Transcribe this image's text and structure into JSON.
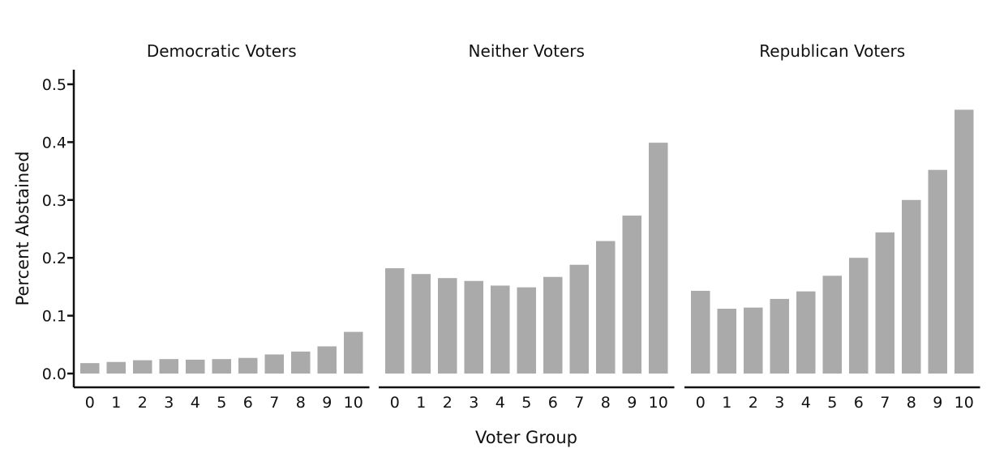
{
  "chart_data": {
    "type": "bar",
    "xlabel": "Voter Group",
    "ylabel": "Percent Abstained",
    "ylim": [
      0,
      0.5
    ],
    "yticks": [
      "0.0",
      "0.1",
      "0.2",
      "0.3",
      "0.4",
      "0.5"
    ],
    "categories": [
      "0",
      "1",
      "2",
      "3",
      "4",
      "5",
      "6",
      "7",
      "8",
      "9",
      "10"
    ],
    "bar_color": "#aaaaaa",
    "grid": false,
    "panels": [
      {
        "title": "Democratic Voters",
        "values": [
          0.018,
          0.02,
          0.023,
          0.025,
          0.024,
          0.025,
          0.027,
          0.033,
          0.038,
          0.047,
          0.072
        ]
      },
      {
        "title": "Neither Voters",
        "values": [
          0.182,
          0.172,
          0.165,
          0.16,
          0.152,
          0.149,
          0.167,
          0.188,
          0.229,
          0.273,
          0.399
        ]
      },
      {
        "title": "Republican Voters",
        "values": [
          0.143,
          0.112,
          0.114,
          0.129,
          0.142,
          0.169,
          0.2,
          0.244,
          0.3,
          0.352,
          0.456
        ]
      }
    ]
  }
}
